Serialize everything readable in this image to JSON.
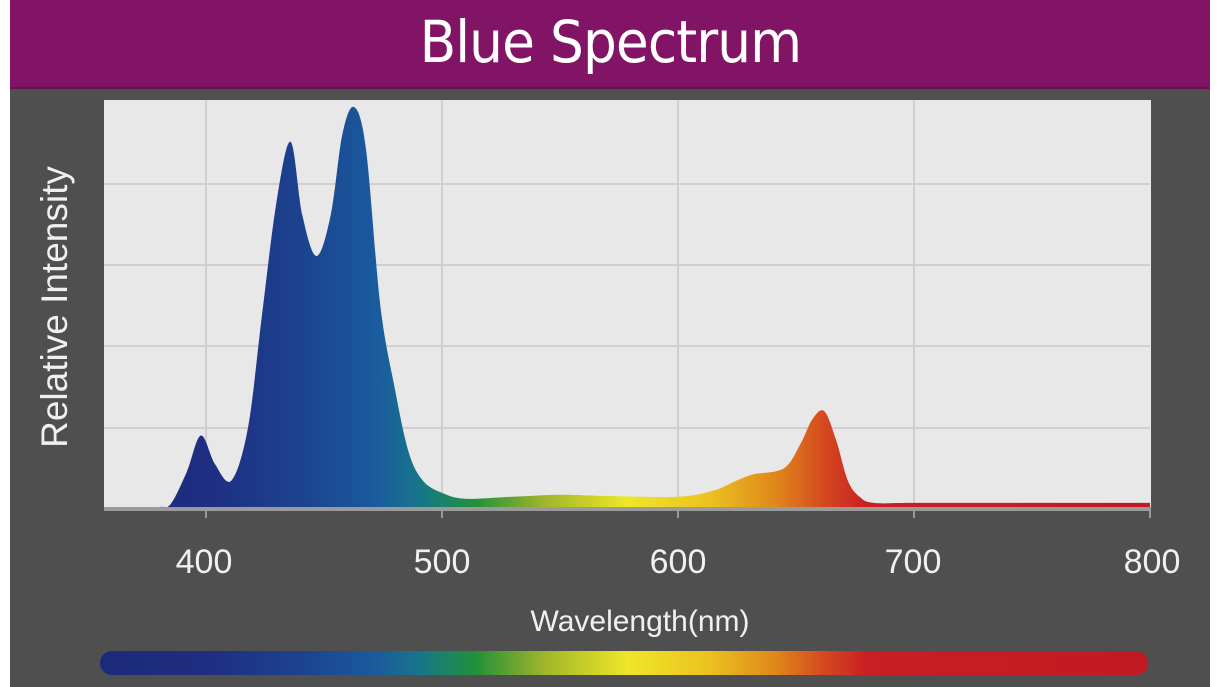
{
  "header": {
    "title": "Blue Spectrum"
  },
  "colors": {
    "banner": "#821466",
    "panel": "#4f4f4f",
    "plot_bg": "#e8e8e8",
    "grid": "#cfcfcf"
  },
  "chart_data": {
    "type": "area",
    "title": "Blue Spectrum",
    "xlabel": "Wavelength(nm)",
    "ylabel": "Relative Intensity",
    "xlim": [
      357,
      800
    ],
    "ylim": [
      0,
      100
    ],
    "x_ticks": [
      400,
      500,
      600,
      700,
      800
    ],
    "y_ticks_unlabeled": 5,
    "grid": true,
    "legend": "none (color bar under x-axis showing spectrum 400-800nm)",
    "series": [
      {
        "name": "Relative Intensity",
        "x": [
          357,
          380,
          385,
          392,
          398,
          404,
          411,
          418,
          424,
          430,
          436,
          441,
          447,
          453,
          458,
          463,
          468,
          474,
          480,
          486,
          492,
          500,
          510,
          530,
          550,
          570,
          600,
          615,
          625,
          632,
          645,
          652,
          657,
          662,
          667,
          672,
          677,
          683,
          700,
          750,
          800
        ],
        "y": [
          0,
          0.5,
          1,
          9,
          18,
          11,
          7,
          20,
          48,
          75,
          90,
          72,
          62,
          72,
          92,
          98.5,
          88,
          50,
          30,
          14,
          7,
          4,
          2.5,
          3,
          3.5,
          3.2,
          3,
          4.5,
          7,
          8.5,
          10,
          16,
          22,
          24,
          17,
          7,
          3,
          1.5,
          1.5,
          1.5,
          1.5
        ]
      }
    ],
    "peaks": [
      {
        "wavelength": 398,
        "intensity": 18
      },
      {
        "wavelength": 436,
        "intensity": 90
      },
      {
        "wavelength": 463,
        "intensity": 98.5
      },
      {
        "wavelength": 662,
        "intensity": 24
      }
    ]
  }
}
